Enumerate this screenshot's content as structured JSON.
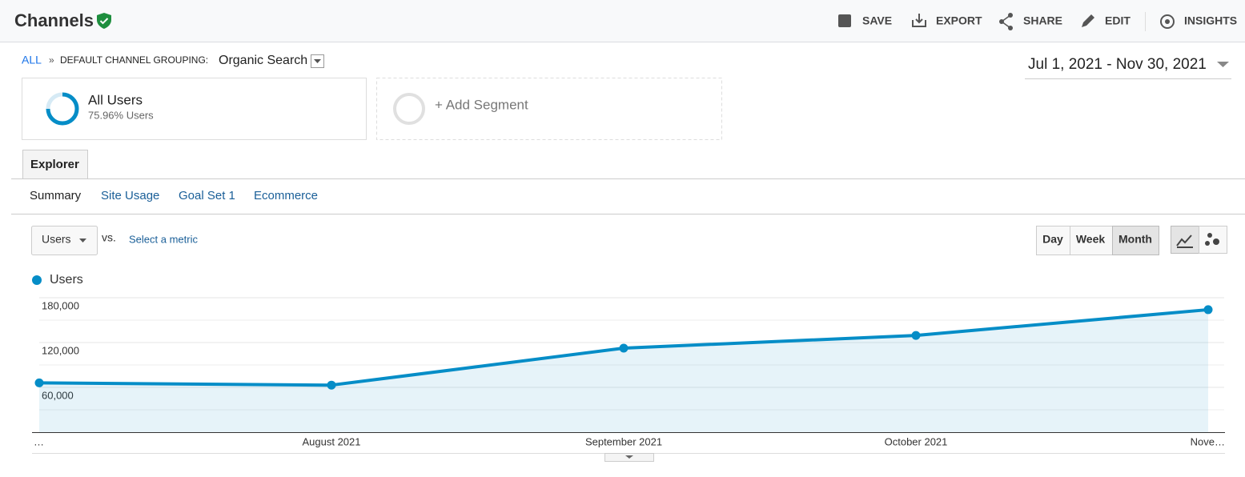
{
  "header": {
    "title": "Channels",
    "actions": [
      "SAVE",
      "EXPORT",
      "SHARE",
      "EDIT",
      "INSIGHTS"
    ]
  },
  "breadcrumb": {
    "root": "ALL",
    "separator": "»",
    "label": "DEFAULT CHANNEL GROUPING:",
    "value": "Organic Search"
  },
  "date_range": "Jul 1, 2021 - Nov 30, 2021",
  "segments": [
    {
      "name": "All Users",
      "detail": "75.96% Users"
    },
    {
      "name": "+ Add Segment"
    }
  ],
  "tab": "Explorer",
  "subtabs": [
    "Summary",
    "Site Usage",
    "Goal Set 1",
    "Ecommerce"
  ],
  "metric_selector": {
    "metric": "Users",
    "vs": "vs.",
    "secondary": "Select a metric"
  },
  "granularity": [
    "Day",
    "Week",
    "Month"
  ],
  "chart_data": {
    "type": "line",
    "categories": [
      "…",
      "August 2021",
      "September 2021",
      "October 2021",
      "Nove…"
    ],
    "series": [
      {
        "name": "Users",
        "color": "#058dc7",
        "values": [
          66000,
          63000,
          112500,
          129500,
          164000
        ]
      }
    ],
    "ylim": [
      0,
      180000
    ],
    "yticks": [
      {
        "value": 60000,
        "label": "60,000"
      },
      {
        "value": 120000,
        "label": "120,000"
      },
      {
        "value": 180000,
        "label": "180,000"
      }
    ],
    "grid": true,
    "area": true
  }
}
